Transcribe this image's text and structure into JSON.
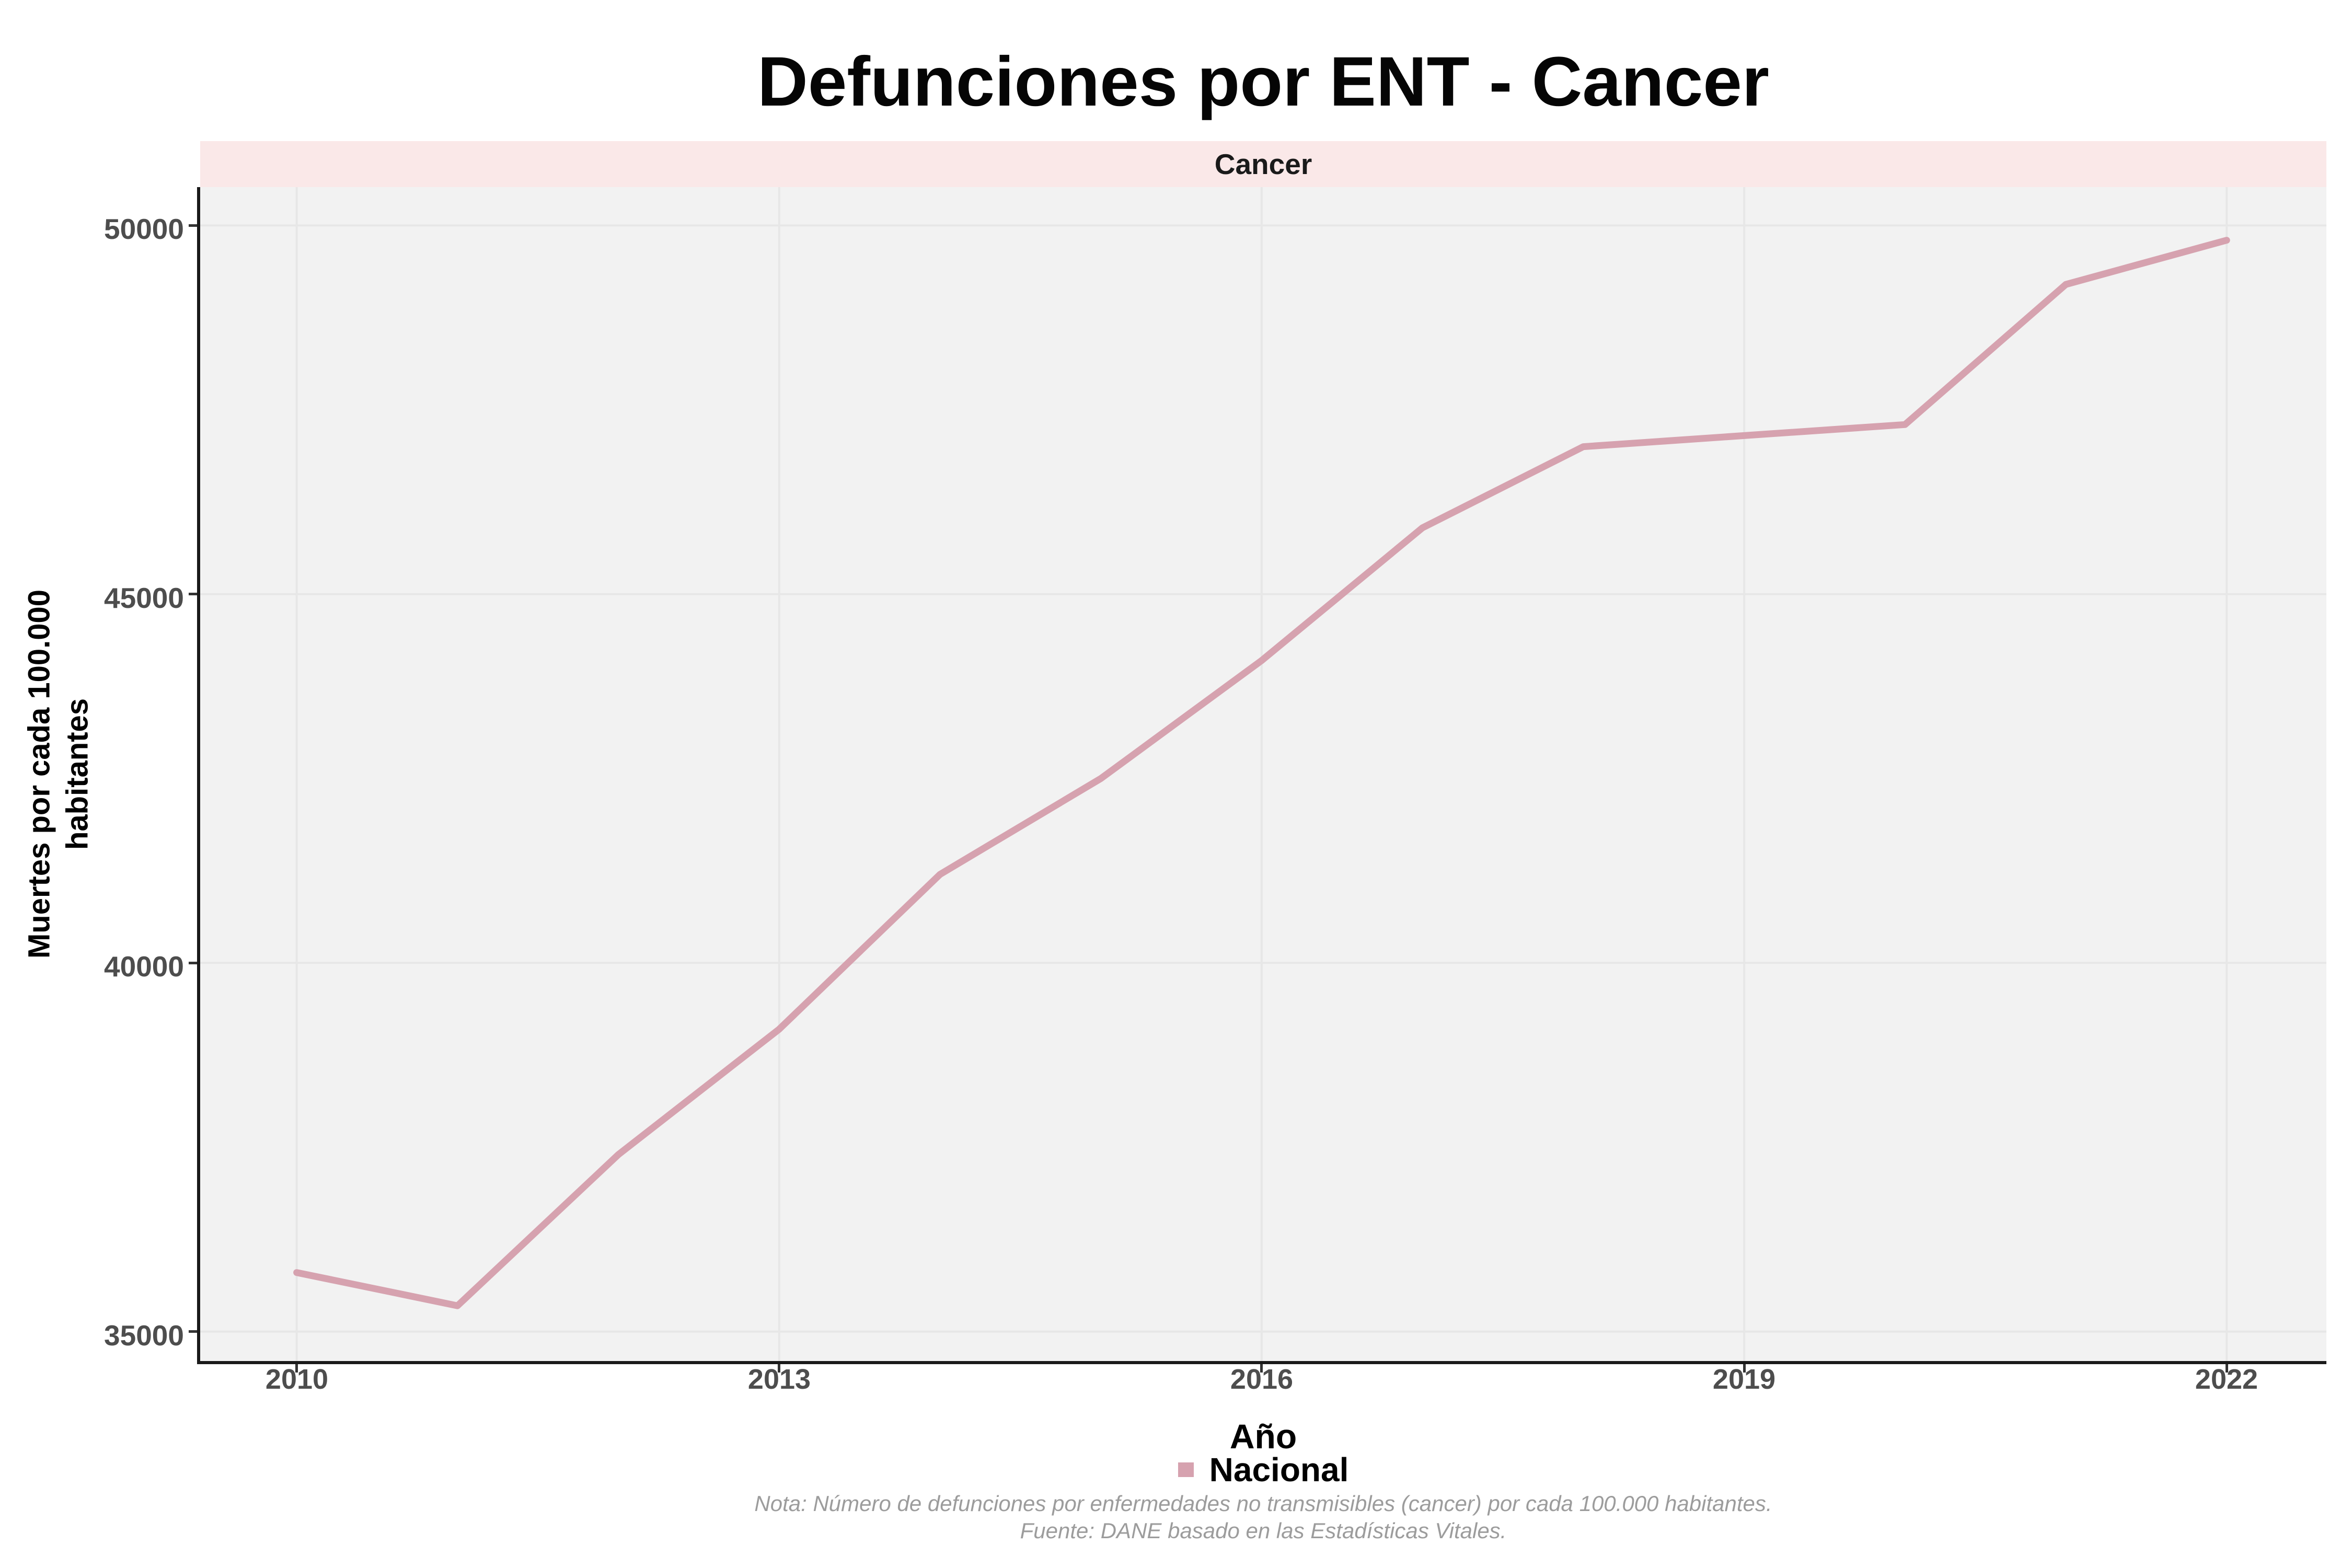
{
  "title": "Defunciones por ENT - Cancer",
  "facet_strip": {
    "label": "Cancer"
  },
  "y_axis": {
    "title_line1": "Muertes por cada 100.000",
    "title_line2": "habitantes",
    "tick_labels": [
      "35000",
      "40000",
      "45000",
      "50000"
    ]
  },
  "x_axis": {
    "title": "Año",
    "tick_labels": [
      "2010",
      "2013",
      "2016",
      "2019",
      "2022"
    ]
  },
  "legend": {
    "label": "Nacional",
    "key_color": "#D6A2AF"
  },
  "notes": {
    "line1": "Nota: Número de defunciones por enfermedades no transmisibles (cancer) por cada 100.000 habitantes.",
    "line2": "Fuente: DANE basado en las Estadísticas Vitales."
  },
  "colors": {
    "background": "#ffffff",
    "strip_background": "#FAE8E8",
    "panel_background": "#F2F2F2",
    "gridline": "#E7E7E7",
    "axis_line": "#1a1a1a",
    "tick_mark": "#333333",
    "tick_label": "#4d4d4d",
    "line": "#D6A2AF",
    "note_text": "#9c9c9c"
  },
  "chart_data": {
    "type": "line",
    "title": "Defunciones por ENT - Cancer",
    "facet": "Cancer",
    "xlabel": "Año",
    "ylabel": "Muertes por cada 100.000 habitantes",
    "x": [
      2010,
      2011,
      2012,
      2013,
      2014,
      2015,
      2016,
      2017,
      2018,
      2019,
      2020,
      2021,
      2022
    ],
    "series": [
      {
        "name": "Nacional",
        "values": [
          35800,
          35350,
          37400,
          39100,
          41200,
          42500,
          44100,
          45900,
          47000,
          47150,
          47300,
          49200,
          49800
        ]
      }
    ],
    "xticks": [
      2010,
      2013,
      2016,
      2019,
      2022
    ],
    "yticks": [
      35000,
      40000,
      45000,
      50000
    ],
    "xlim": [
      2009.4,
      2022.62
    ],
    "ylim": [
      34600,
      50520
    ],
    "grid": "major-only",
    "legend_position": "bottom"
  }
}
